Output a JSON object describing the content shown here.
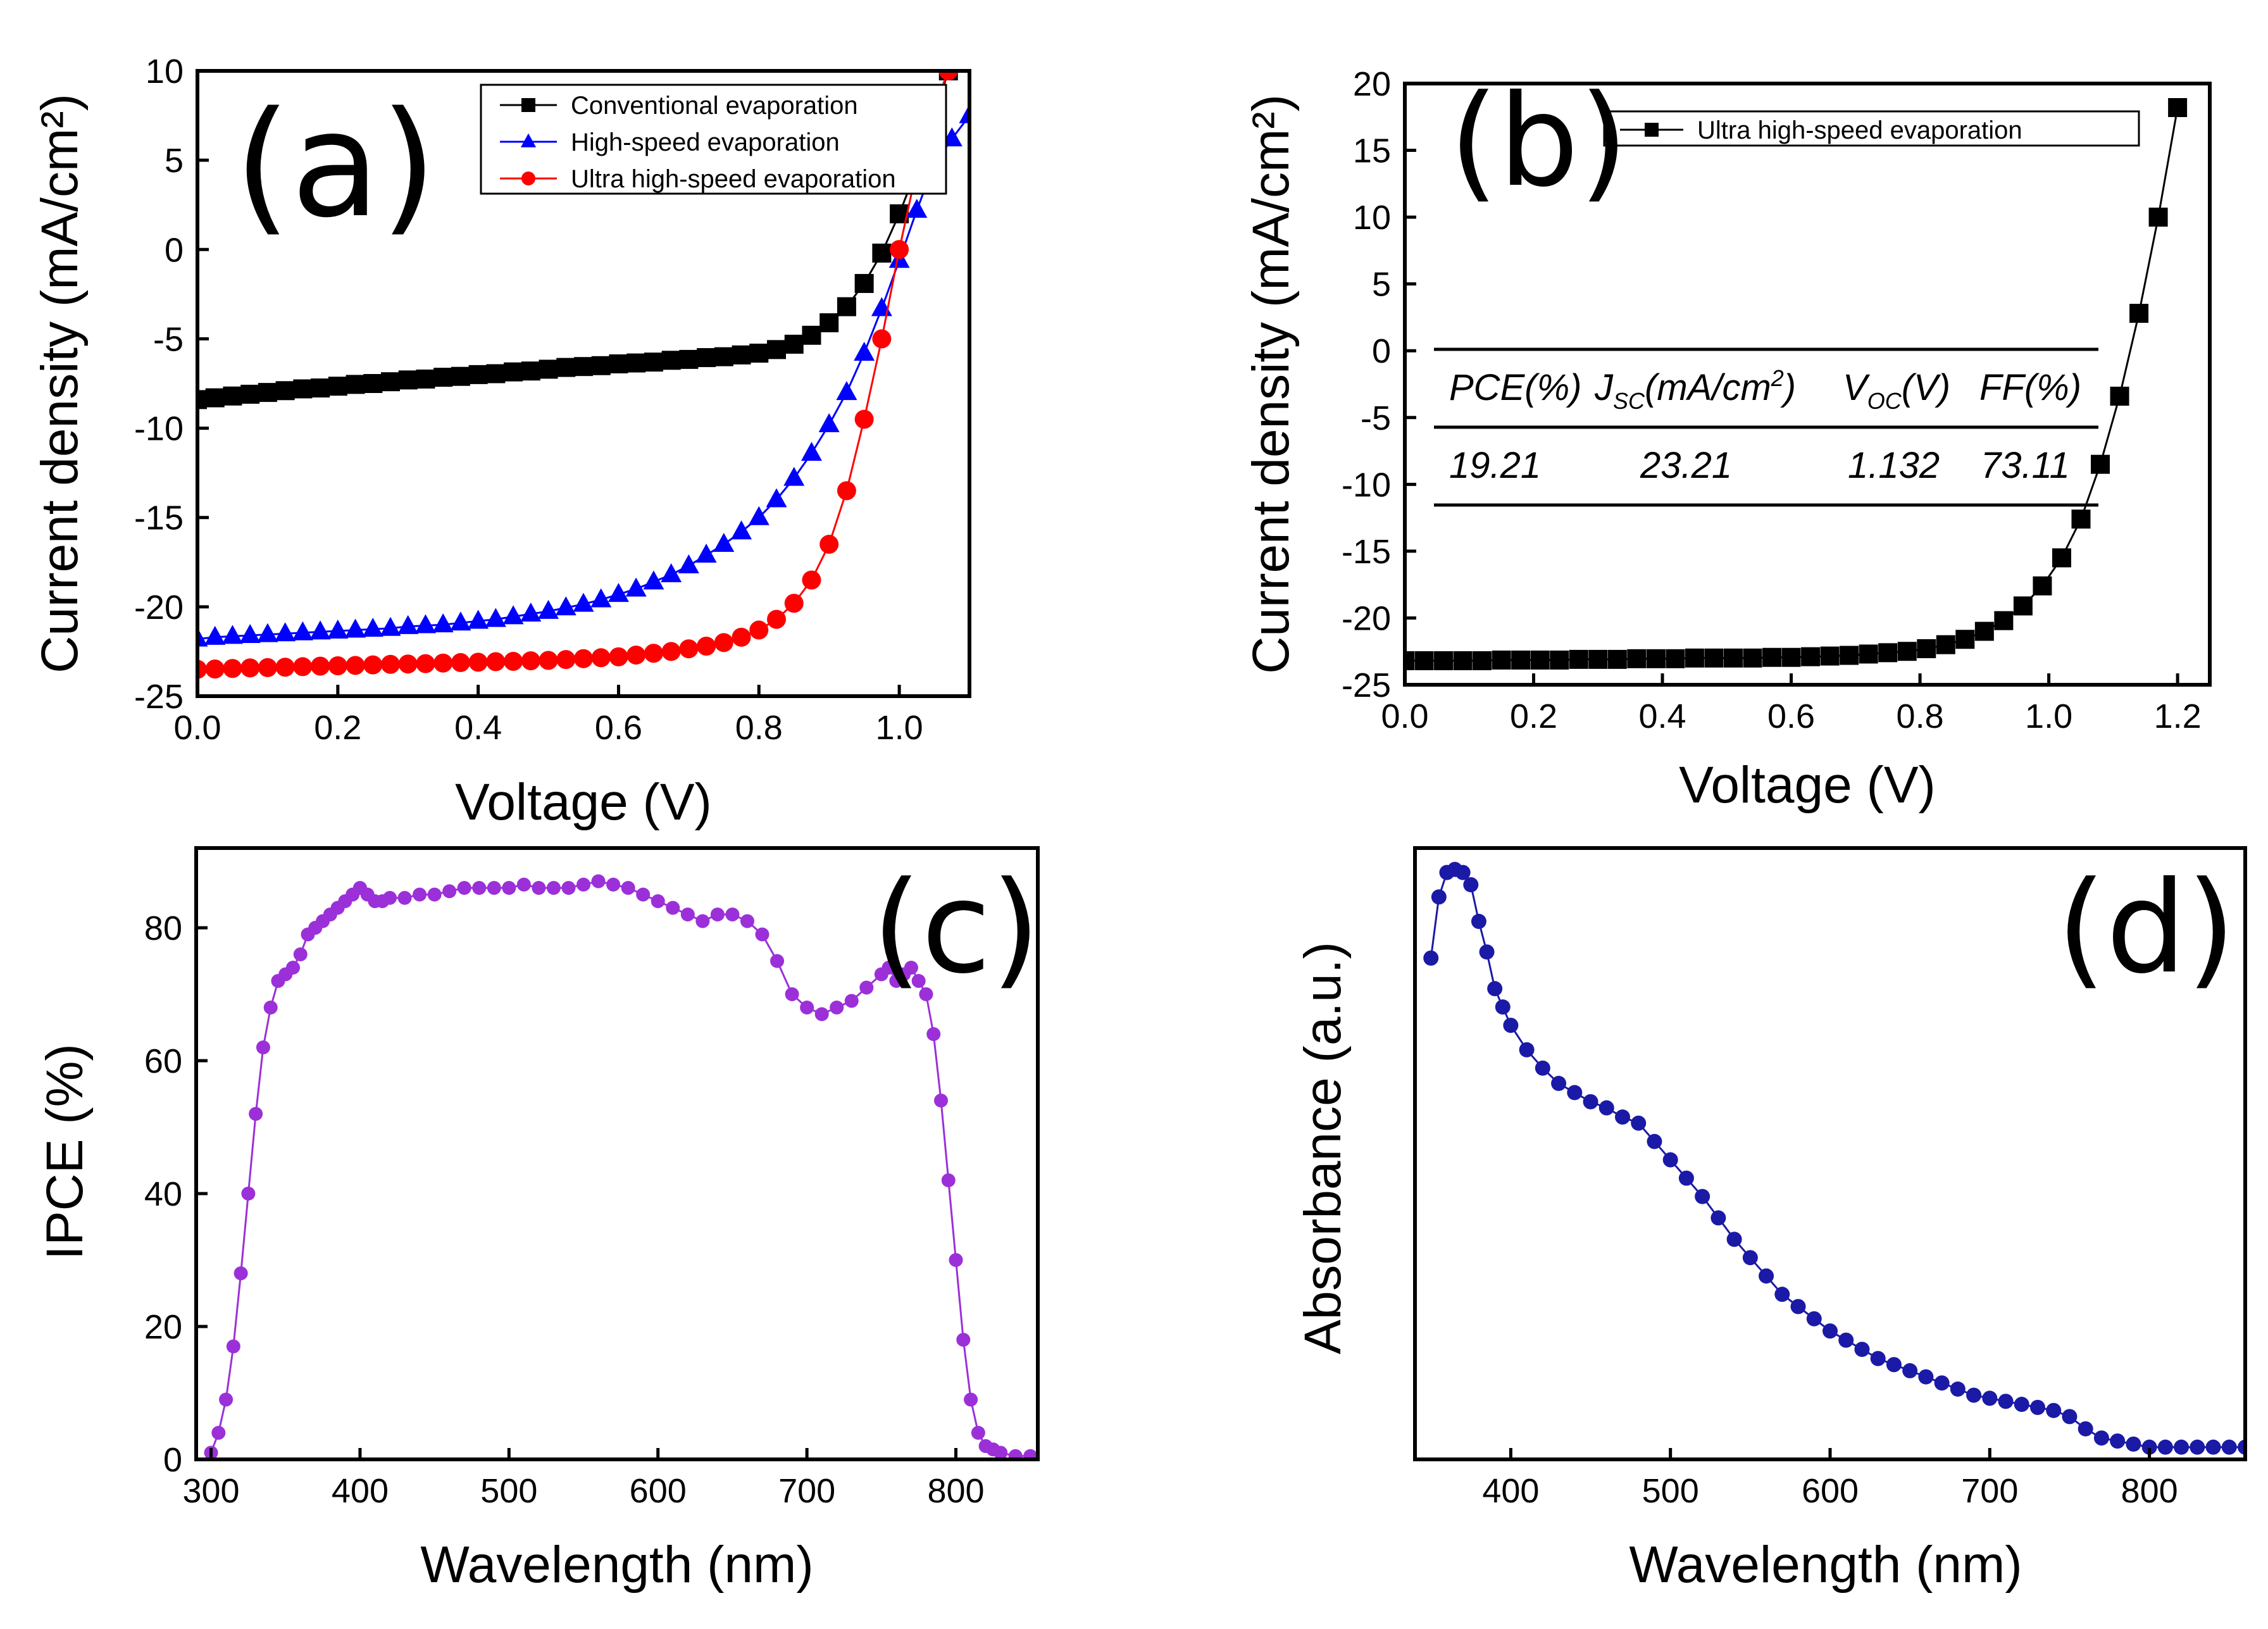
{
  "chart_data": [
    {
      "id": "a",
      "type": "line",
      "panel_label": "(a)",
      "xlabel": "Voltage (V)",
      "ylabel": "Current density (mA/cm²)",
      "xlim": [
        0,
        1.1
      ],
      "ylim": [
        -25,
        10
      ],
      "xticks": [
        0.0,
        0.2,
        0.4,
        0.6,
        0.8,
        1.0
      ],
      "xtick_labels": [
        "0.0",
        "0.2",
        "0.4",
        "0.6",
        "0.8",
        "1.0"
      ],
      "yticks": [
        -25,
        -20,
        -15,
        -10,
        -5,
        0,
        5,
        10
      ],
      "ytick_labels": [
        "-25",
        "-20",
        "-15",
        "-10",
        "-5",
        "0",
        "5",
        "10"
      ],
      "legend_position": "top-right",
      "series": [
        {
          "name": "Conventional evaporation",
          "color": "#000000",
          "marker": "square",
          "x": [
            0.0,
            0.025,
            0.05,
            0.075,
            0.1,
            0.125,
            0.15,
            0.175,
            0.2,
            0.225,
            0.25,
            0.275,
            0.3,
            0.325,
            0.35,
            0.375,
            0.4,
            0.425,
            0.45,
            0.475,
            0.5,
            0.525,
            0.55,
            0.575,
            0.6,
            0.625,
            0.65,
            0.675,
            0.7,
            0.725,
            0.75,
            0.775,
            0.8,
            0.825,
            0.85,
            0.875,
            0.9,
            0.925,
            0.95,
            0.975,
            1.0,
            1.025,
            1.05,
            1.07
          ],
          "values": [
            -8.4,
            -8.3,
            -8.2,
            -8.1,
            -8.0,
            -7.9,
            -7.8,
            -7.75,
            -7.65,
            -7.55,
            -7.5,
            -7.4,
            -7.3,
            -7.25,
            -7.15,
            -7.1,
            -7.0,
            -6.95,
            -6.85,
            -6.8,
            -6.7,
            -6.6,
            -6.55,
            -6.5,
            -6.4,
            -6.35,
            -6.3,
            -6.2,
            -6.15,
            -6.05,
            -6.0,
            -5.9,
            -5.8,
            -5.6,
            -5.3,
            -4.8,
            -4.1,
            -3.2,
            -1.9,
            -0.2,
            2.0,
            4.5,
            7.5,
            10.0
          ]
        },
        {
          "name": "High-speed evaporation",
          "color": "#0000ff",
          "marker": "triangle",
          "x": [
            0.0,
            0.025,
            0.05,
            0.075,
            0.1,
            0.125,
            0.15,
            0.175,
            0.2,
            0.225,
            0.25,
            0.275,
            0.3,
            0.325,
            0.35,
            0.375,
            0.4,
            0.425,
            0.45,
            0.475,
            0.5,
            0.525,
            0.55,
            0.575,
            0.6,
            0.625,
            0.65,
            0.675,
            0.7,
            0.725,
            0.75,
            0.775,
            0.8,
            0.825,
            0.85,
            0.875,
            0.9,
            0.925,
            0.95,
            0.975,
            1.0,
            1.025,
            1.05,
            1.075,
            1.1
          ],
          "values": [
            -21.8,
            -21.7,
            -21.65,
            -21.6,
            -21.55,
            -21.5,
            -21.45,
            -21.4,
            -21.35,
            -21.3,
            -21.25,
            -21.2,
            -21.1,
            -21.05,
            -21.0,
            -20.9,
            -20.8,
            -20.7,
            -20.55,
            -20.4,
            -20.25,
            -20.05,
            -19.85,
            -19.6,
            -19.3,
            -19.0,
            -18.6,
            -18.2,
            -17.7,
            -17.1,
            -16.5,
            -15.8,
            -15.0,
            -14.0,
            -12.8,
            -11.4,
            -9.8,
            -8.0,
            -5.8,
            -3.3,
            -0.6,
            2.2,
            4.8,
            6.2,
            7.5
          ]
        },
        {
          "name": "Ultra high-speed evaporation",
          "color": "#ff0000",
          "marker": "circle",
          "x": [
            0.0,
            0.025,
            0.05,
            0.075,
            0.1,
            0.125,
            0.15,
            0.175,
            0.2,
            0.225,
            0.25,
            0.275,
            0.3,
            0.325,
            0.35,
            0.375,
            0.4,
            0.425,
            0.45,
            0.475,
            0.5,
            0.525,
            0.55,
            0.575,
            0.6,
            0.625,
            0.65,
            0.675,
            0.7,
            0.725,
            0.75,
            0.775,
            0.8,
            0.825,
            0.85,
            0.875,
            0.9,
            0.925,
            0.95,
            0.975,
            1.0,
            1.025,
            1.05,
            1.07
          ],
          "values": [
            -23.5,
            -23.48,
            -23.45,
            -23.42,
            -23.4,
            -23.38,
            -23.35,
            -23.32,
            -23.3,
            -23.28,
            -23.25,
            -23.22,
            -23.2,
            -23.18,
            -23.15,
            -23.12,
            -23.1,
            -23.07,
            -23.05,
            -23.02,
            -23.0,
            -22.95,
            -22.9,
            -22.85,
            -22.8,
            -22.7,
            -22.6,
            -22.5,
            -22.35,
            -22.2,
            -22.0,
            -21.7,
            -21.3,
            -20.7,
            -19.8,
            -18.5,
            -16.5,
            -13.5,
            -9.5,
            -5.0,
            0.0,
            4.5,
            8.0,
            10.0
          ]
        }
      ]
    },
    {
      "id": "b",
      "type": "line",
      "panel_label": "(b)",
      "xlabel": "Voltage (V)",
      "ylabel": "Current density (mA/cm²)",
      "xlim": [
        0,
        1.25
      ],
      "ylim": [
        -25,
        20
      ],
      "xticks": [
        0.0,
        0.2,
        0.4,
        0.6,
        0.8,
        1.0,
        1.2
      ],
      "xtick_labels": [
        "0.0",
        "0.2",
        "0.4",
        "0.6",
        "0.8",
        "1.0",
        "1.2"
      ],
      "yticks": [
        -25,
        -20,
        -15,
        -10,
        -5,
        0,
        5,
        10,
        15,
        20
      ],
      "ytick_labels": [
        "-25",
        "-20",
        "-15",
        "-10",
        "-5",
        "0",
        "5",
        "10",
        "15",
        "20"
      ],
      "legend_position": "top-right",
      "series": [
        {
          "name": "Ultra high-speed evaporation",
          "color": "#000000",
          "marker": "square",
          "x": [
            0.0,
            0.03,
            0.06,
            0.09,
            0.12,
            0.15,
            0.18,
            0.21,
            0.24,
            0.27,
            0.3,
            0.33,
            0.36,
            0.39,
            0.42,
            0.45,
            0.48,
            0.51,
            0.54,
            0.57,
            0.6,
            0.63,
            0.66,
            0.69,
            0.72,
            0.75,
            0.78,
            0.81,
            0.84,
            0.87,
            0.9,
            0.93,
            0.96,
            0.99,
            1.02,
            1.05,
            1.08,
            1.11,
            1.14,
            1.17,
            1.2
          ],
          "values": [
            -23.2,
            -23.2,
            -23.2,
            -23.2,
            -23.2,
            -23.15,
            -23.15,
            -23.15,
            -23.15,
            -23.1,
            -23.1,
            -23.1,
            -23.05,
            -23.05,
            -23.05,
            -23.0,
            -23.0,
            -23.0,
            -23.0,
            -22.95,
            -22.95,
            -22.9,
            -22.85,
            -22.8,
            -22.7,
            -22.6,
            -22.5,
            -22.3,
            -22.0,
            -21.6,
            -21.0,
            -20.2,
            -19.1,
            -17.6,
            -15.5,
            -12.6,
            -8.5,
            -3.4,
            2.8,
            10.0,
            18.2
          ]
        }
      ],
      "table": {
        "headers": [
          "PCE(%)",
          "J",
          "SC",
          "(mA/cm",
          "2",
          ")",
          "V",
          "OC",
          "(V)",
          "FF(%)"
        ],
        "values": [
          "19.21",
          "23.21",
          "1.132",
          "73.11"
        ]
      }
    },
    {
      "id": "c",
      "type": "line",
      "panel_label": "(c)",
      "xlabel": "Wavelength (nm)",
      "ylabel": "IPCE (%)",
      "xlim": [
        290,
        855
      ],
      "ylim": [
        0,
        92
      ],
      "xticks": [
        300,
        400,
        500,
        600,
        700,
        800
      ],
      "xtick_labels": [
        "300",
        "400",
        "500",
        "600",
        "700",
        "800"
      ],
      "yticks": [
        0,
        20,
        40,
        60,
        80
      ],
      "ytick_labels": [
        "0",
        "20",
        "40",
        "60",
        "80"
      ],
      "series": [
        {
          "name": "IPCE",
          "color": "#9b30d8",
          "marker": "circle",
          "x": [
            300,
            305,
            310,
            315,
            320,
            325,
            330,
            335,
            340,
            345,
            350,
            355,
            360,
            365,
            370,
            375,
            380,
            385,
            390,
            395,
            400,
            405,
            410,
            415,
            420,
            430,
            440,
            450,
            460,
            470,
            480,
            490,
            500,
            510,
            520,
            530,
            540,
            550,
            560,
            570,
            580,
            590,
            600,
            610,
            620,
            630,
            640,
            650,
            660,
            670,
            680,
            690,
            700,
            710,
            720,
            730,
            740,
            750,
            755,
            760,
            765,
            770,
            775,
            780,
            785,
            790,
            795,
            800,
            805,
            810,
            815,
            820,
            825,
            830,
            840,
            850
          ],
          "values": [
            1,
            4,
            9,
            17,
            28,
            40,
            52,
            62,
            68,
            72,
            73,
            74,
            76,
            79,
            80,
            81,
            82,
            83,
            84,
            85,
            86,
            85,
            84,
            84,
            84.5,
            84.5,
            85,
            85,
            85.5,
            86,
            86,
            86,
            86,
            86.5,
            86,
            86,
            86,
            86.5,
            87,
            86.5,
            86,
            85,
            84,
            83,
            82,
            81,
            82,
            82,
            81,
            79,
            75,
            70,
            68,
            67,
            68,
            69,
            71,
            73,
            74,
            72,
            73,
            74,
            72,
            70,
            64,
            54,
            42,
            30,
            18,
            9,
            4,
            2,
            1.5,
            1,
            0.5,
            0.5
          ]
        }
      ]
    },
    {
      "id": "d",
      "type": "line",
      "panel_label": "(d)",
      "xlabel": "Wavelength (nm)",
      "ylabel": "Absorbance (a.u.)",
      "xlim": [
        340,
        860
      ],
      "ylim": [
        0,
        1.0
      ],
      "xticks": [
        400,
        500,
        600,
        700,
        800
      ],
      "xtick_labels": [
        "400",
        "500",
        "600",
        "700",
        "800"
      ],
      "yticks": [],
      "ytick_labels": [],
      "series": [
        {
          "name": "Absorbance",
          "color": "#1a1aa6",
          "marker": "circle",
          "x": [
            350,
            355,
            360,
            365,
            370,
            375,
            380,
            385,
            390,
            395,
            400,
            410,
            420,
            430,
            440,
            450,
            460,
            470,
            480,
            490,
            500,
            510,
            520,
            530,
            540,
            550,
            560,
            570,
            580,
            590,
            600,
            610,
            620,
            630,
            640,
            650,
            660,
            670,
            680,
            690,
            700,
            710,
            720,
            730,
            740,
            750,
            760,
            770,
            780,
            790,
            800,
            810,
            820,
            830,
            840,
            850,
            860
          ],
          "values": [
            0.82,
            0.92,
            0.96,
            0.965,
            0.96,
            0.94,
            0.88,
            0.83,
            0.77,
            0.74,
            0.71,
            0.67,
            0.64,
            0.615,
            0.6,
            0.585,
            0.575,
            0.56,
            0.55,
            0.52,
            0.49,
            0.46,
            0.43,
            0.395,
            0.36,
            0.33,
            0.3,
            0.27,
            0.25,
            0.23,
            0.21,
            0.195,
            0.18,
            0.165,
            0.155,
            0.145,
            0.135,
            0.125,
            0.115,
            0.105,
            0.1,
            0.095,
            0.09,
            0.085,
            0.08,
            0.07,
            0.05,
            0.035,
            0.03,
            0.025,
            0.02,
            0.02,
            0.02,
            0.02,
            0.02,
            0.02,
            0.02
          ]
        }
      ]
    }
  ]
}
